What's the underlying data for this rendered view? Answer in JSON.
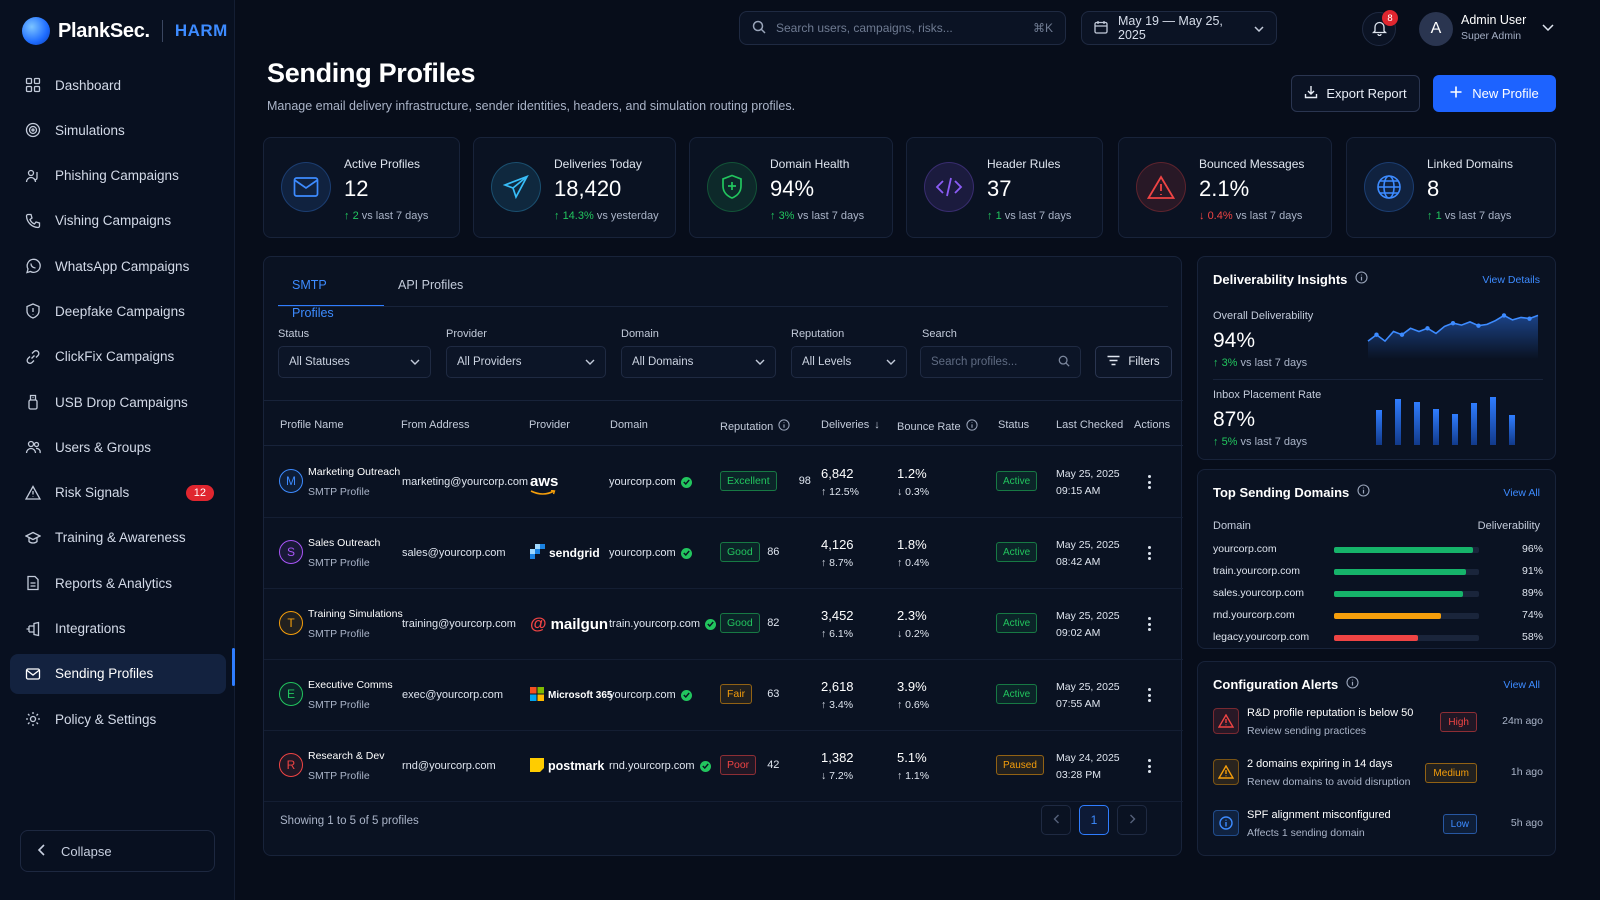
{
  "brand": {
    "name": "PlankSec.",
    "product": "HARM"
  },
  "sidebar": {
    "items": [
      {
        "label": "Dashboard",
        "icon": "grid-icon"
      },
      {
        "label": "Simulations",
        "icon": "target-icon"
      },
      {
        "label": "Phishing Campaigns",
        "icon": "users-hook-icon"
      },
      {
        "label": "Vishing Campaigns",
        "icon": "phone-icon"
      },
      {
        "label": "WhatsApp Campaigns",
        "icon": "whatsapp-icon"
      },
      {
        "label": "Deepfake Campaigns",
        "icon": "face-shield-icon"
      },
      {
        "label": "ClickFix Campaigns",
        "icon": "link-icon"
      },
      {
        "label": "USB Drop Campaigns",
        "icon": "usb-icon"
      },
      {
        "label": "Users & Groups",
        "icon": "users-icon"
      },
      {
        "label": "Risk Signals",
        "icon": "warning-icon",
        "badge": "12"
      },
      {
        "label": "Training & Awareness",
        "icon": "graduation-icon"
      },
      {
        "label": "Reports & Analytics",
        "icon": "report-icon"
      },
      {
        "label": "Integrations",
        "icon": "plug-icon"
      },
      {
        "label": "Sending Profiles",
        "icon": "mail-icon",
        "active": true
      },
      {
        "label": "Policy & Settings",
        "icon": "gear-icon"
      }
    ],
    "collapse_label": "Collapse"
  },
  "topbar": {
    "search_placeholder": "Search users, campaigns, risks...",
    "search_shortcut": "⌘K",
    "date_range": "May 19 — May 25, 2025",
    "notifications": "8",
    "user": {
      "initial": "A",
      "name": "Admin User",
      "role": "Super Admin"
    }
  },
  "header": {
    "title": "Sending Profiles",
    "subtitle": "Manage email delivery infrastructure, sender identities, headers, and simulation routing profiles.",
    "export_label": "Export Report",
    "new_label": "New Profile"
  },
  "stats": [
    {
      "label": "Active Profiles",
      "value": "12",
      "delta": "2",
      "delta_dir": "up",
      "delta_text": "vs last 7 days",
      "icon": "mail-icon",
      "color": "#3d8bff"
    },
    {
      "label": "Deliveries Today",
      "value": "18,420",
      "delta": "14.3%",
      "delta_dir": "up",
      "delta_text": "vs yesterday",
      "icon": "send-icon",
      "color": "#38bdf8"
    },
    {
      "label": "Domain Health",
      "value": "94%",
      "delta": "3%",
      "delta_dir": "up",
      "delta_text": "vs last 7 days",
      "icon": "shield-icon",
      "color": "#22c55e"
    },
    {
      "label": "Header Rules",
      "value": "37",
      "delta": "1",
      "delta_dir": "up",
      "delta_text": "vs last 7 days",
      "icon": "code-icon",
      "color": "#8b5cf6"
    },
    {
      "label": "Bounced Messages",
      "value": "2.1%",
      "delta": "0.4%",
      "delta_dir": "down",
      "delta_text": "vs last 7 days",
      "icon": "warning-icon",
      "color": "#ef4444"
    },
    {
      "label": "Linked Domains",
      "value": "8",
      "delta": "1",
      "delta_dir": "up",
      "delta_text": "vs last 7 days",
      "icon": "globe-icon",
      "color": "#3d8bff"
    }
  ],
  "table": {
    "tabs": [
      "SMTP Profiles",
      "API Profiles"
    ],
    "filters": {
      "status": {
        "label": "Status",
        "value": "All Statuses"
      },
      "provider": {
        "label": "Provider",
        "value": "All Providers"
      },
      "domain": {
        "label": "Domain",
        "value": "All Domains"
      },
      "reputation": {
        "label": "Reputation",
        "value": "All Levels"
      },
      "search": {
        "label": "Search",
        "placeholder": "Search profiles..."
      },
      "filters_button": "Filters"
    },
    "columns": [
      "Profile Name",
      "From Address",
      "Provider",
      "Domain",
      "Reputation",
      "Deliveries",
      "Bounce Rate",
      "Status",
      "Last Checked",
      "Actions"
    ],
    "rows": [
      {
        "initial": "M",
        "color": "#3d8bff",
        "name": "Marketing Outreach",
        "type": "SMTP Profile",
        "from": "marketing@yourcorp.com",
        "provider": "aws",
        "domain": "yourcorp.com",
        "rep": "Excellent",
        "rep_color": "#22c55e",
        "score": "98",
        "deliveries": "6,842",
        "deliv_delta": "12.5%",
        "deliv_dir": "up",
        "bounce": "1.2%",
        "bounce_delta": "0.3%",
        "bounce_dir": "down-good",
        "status": "Active",
        "date": "May 25, 2025",
        "time": "09:15 AM"
      },
      {
        "initial": "S",
        "color": "#a855f7",
        "name": "Sales Outreach",
        "type": "SMTP Profile",
        "from": "sales@yourcorp.com",
        "provider": "sendgrid",
        "domain": "yourcorp.com",
        "rep": "Good",
        "rep_color": "#22c55e",
        "score": "86",
        "deliveries": "4,126",
        "deliv_delta": "8.7%",
        "deliv_dir": "up",
        "bounce": "1.8%",
        "bounce_delta": "0.4%",
        "bounce_dir": "up-bad",
        "status": "Active",
        "date": "May 25, 2025",
        "time": "08:42 AM"
      },
      {
        "initial": "T",
        "color": "#f59e0b",
        "name": "Training Simulations",
        "type": "SMTP Profile",
        "from": "training@yourcorp.com",
        "provider": "mailgun",
        "domain": "train.yourcorp.com",
        "rep": "Good",
        "rep_color": "#22c55e",
        "score": "82",
        "deliveries": "3,452",
        "deliv_delta": "6.1%",
        "deliv_dir": "up",
        "bounce": "2.3%",
        "bounce_delta": "0.2%",
        "bounce_dir": "down-good",
        "status": "Active",
        "date": "May 25, 2025",
        "time": "09:02 AM"
      },
      {
        "initial": "E",
        "color": "#22c55e",
        "name": "Executive Comms",
        "type": "SMTP Profile",
        "from": "exec@yourcorp.com",
        "provider": "Microsoft 365",
        "domain": "yourcorp.com",
        "rep": "Fair",
        "rep_color": "#f59e0b",
        "score": "63",
        "deliveries": "2,618",
        "deliv_delta": "3.4%",
        "deliv_dir": "up",
        "bounce": "3.9%",
        "bounce_delta": "0.6%",
        "bounce_dir": "up-bad",
        "status": "Active",
        "date": "May 25, 2025",
        "time": "07:55 AM"
      },
      {
        "initial": "R",
        "color": "#ef4444",
        "name": "Research & Dev",
        "type": "SMTP Profile",
        "from": "rnd@yourcorp.com",
        "provider": "postmark",
        "domain": "rnd.yourcorp.com",
        "rep": "Poor",
        "rep_color": "#ef4444",
        "score": "42",
        "deliveries": "1,382",
        "deliv_delta": "7.2%",
        "deliv_dir": "down",
        "bounce": "5.1%",
        "bounce_delta": "1.1%",
        "bounce_dir": "up-bad",
        "status": "Paused",
        "date": "May 24, 2025",
        "time": "03:28 PM"
      }
    ],
    "showing": "Showing 1 to 5 of 5 profiles",
    "page": "1"
  },
  "insights": {
    "title": "Deliverability Insights",
    "link": "View Details",
    "overall": {
      "label": "Overall Deliverability",
      "value": "94%",
      "delta": "3%",
      "delta_text": "vs last 7 days",
      "trend": [
        90,
        91,
        90,
        91.5,
        91,
        92,
        91.5,
        92,
        91.2,
        92.3,
        92.8,
        92.5,
        93,
        92.4,
        92.6,
        93.2,
        94,
        93.3,
        93.7,
        93.5,
        94
      ]
    },
    "inbox": {
      "label": "Inbox Placement Rate",
      "value": "87%",
      "delta": "5%",
      "delta_text": "vs last 7 days",
      "bars": [
        70,
        92,
        86,
        72,
        62,
        84,
        96,
        60
      ]
    }
  },
  "top_domains": {
    "title": "Top Sending Domains",
    "link": "View All",
    "col_domain": "Domain",
    "col_deliv": "Deliverability",
    "rows": [
      {
        "domain": "yourcorp.com",
        "pct": 96,
        "label": "96%",
        "color": "#16b36a"
      },
      {
        "domain": "train.yourcorp.com",
        "pct": 91,
        "label": "91%",
        "color": "#16b36a"
      },
      {
        "domain": "sales.yourcorp.com",
        "pct": 89,
        "label": "89%",
        "color": "#16b36a"
      },
      {
        "domain": "rnd.yourcorp.com",
        "pct": 74,
        "label": "74%",
        "color": "#f59e0b"
      },
      {
        "domain": "legacy.yourcorp.com",
        "pct": 58,
        "label": "58%",
        "color": "#ef4444"
      }
    ]
  },
  "alerts": {
    "title": "Configuration Alerts",
    "link": "View All",
    "rows": [
      {
        "title": "R&D profile reputation is below 50",
        "sub": "Review sending practices",
        "level": "High",
        "color": "#ef4444",
        "time": "24m ago",
        "icon": "warning-icon"
      },
      {
        "title": "2 domains expiring in 14 days",
        "sub": "Renew domains to avoid disruption",
        "level": "Medium",
        "color": "#f59e0b",
        "time": "1h ago",
        "icon": "warning-icon"
      },
      {
        "title": "SPF alignment misconfigured",
        "sub": "Affects 1 sending domain",
        "level": "Low",
        "color": "#3d8bff",
        "time": "5h ago",
        "icon": "info-icon"
      }
    ]
  }
}
